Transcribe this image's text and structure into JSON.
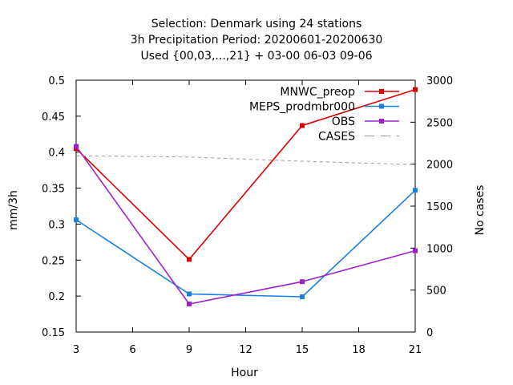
{
  "chart_data": {
    "type": "line",
    "title_lines": [
      "Selection: Denmark using    24 stations",
      "3h Precipitation   Period: 20200601-20200630",
      "Used {00,03,...,21} + 03-00 06-03 09-06"
    ],
    "xlabel": "Hour",
    "ylabel": "mm/3h",
    "y2label": "No cases",
    "x": [
      3,
      9,
      15,
      21
    ],
    "xlim": [
      3,
      21
    ],
    "xticks": [
      "3",
      "6",
      "9",
      "12",
      "15",
      "18",
      "21"
    ],
    "ylim": [
      0.15,
      0.5
    ],
    "yticks": [
      "0.15",
      "0.2",
      "0.25",
      "0.3",
      "0.35",
      "0.4",
      "0.45",
      "0.5"
    ],
    "y2lim": [
      0,
      3000
    ],
    "y2ticks": [
      "0",
      "500",
      "1000",
      "1500",
      "2000",
      "2500",
      "3000"
    ],
    "grid": false,
    "legend_position": "top-right",
    "series": [
      {
        "name": "MNWC_preop",
        "color": "#dd0000",
        "axis": "y",
        "style": "line-points",
        "values": [
          0.405,
          0.251,
          0.437,
          0.487
        ]
      },
      {
        "name": "MEPS_prodmbr000",
        "color": "#1a80e6",
        "axis": "y",
        "style": "line-points",
        "values": [
          0.306,
          0.203,
          0.199,
          0.347
        ]
      },
      {
        "name": "OBS",
        "color": "#a020d0",
        "axis": "y",
        "style": "line-points",
        "values": [
          0.408,
          0.189,
          0.22,
          0.263
        ]
      },
      {
        "name": "CASES",
        "color": "#999999",
        "axis": "y2",
        "style": "dashed",
        "values": [
          2100,
          2085,
          2035,
          1995
        ]
      }
    ]
  }
}
